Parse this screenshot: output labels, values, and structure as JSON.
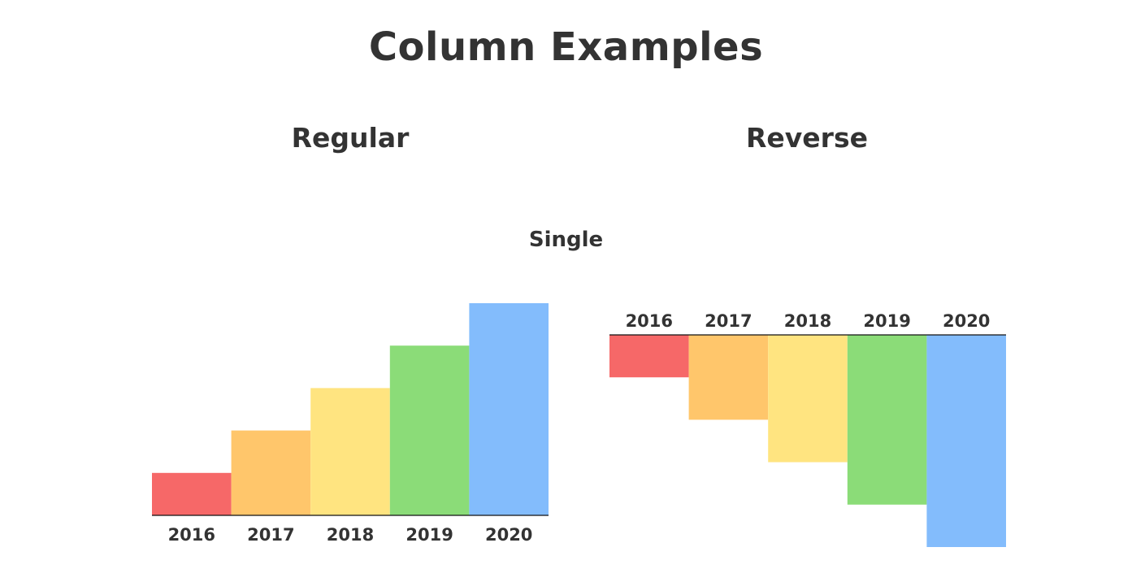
{
  "page": {
    "title": "Column Examples",
    "subtitle": "Single"
  },
  "chart_data": [
    {
      "type": "bar",
      "title": "Regular",
      "orientation": "up",
      "categories": [
        "2016",
        "2017",
        "2018",
        "2019",
        "2020"
      ],
      "values": [
        0.2,
        0.4,
        0.6,
        0.8,
        1.0
      ],
      "colors": [
        "#f66868",
        "#ffc66b",
        "#ffe480",
        "#8bdc78",
        "#83bcfc"
      ],
      "ylim": [
        0,
        1
      ]
    },
    {
      "type": "bar",
      "title": "Reverse",
      "orientation": "down",
      "categories": [
        "2016",
        "2017",
        "2018",
        "2019",
        "2020"
      ],
      "values": [
        0.2,
        0.4,
        0.6,
        0.8,
        1.0
      ],
      "colors": [
        "#f66868",
        "#ffc66b",
        "#ffe480",
        "#8bdc78",
        "#83bcfc"
      ],
      "ylim": [
        0,
        1
      ]
    }
  ]
}
